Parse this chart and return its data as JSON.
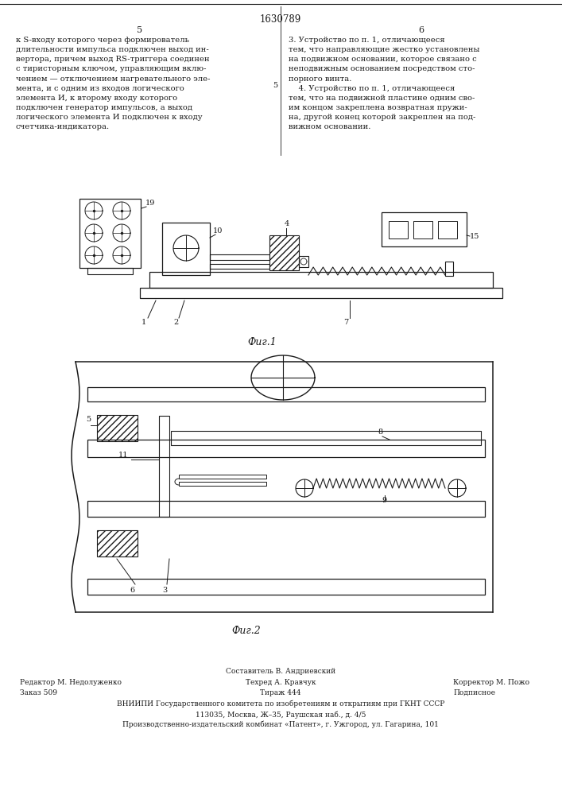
{
  "page_title": "1630789",
  "col_left": "5",
  "col_right": "6",
  "text_left": "к S-входу которого через формирователь\nдлительности импульса подключен выход ин-\nвертора, причем выход RS-триггера соединен\nс тиристорным ключом, управляющим вклю-\nчением — отключением нагревательного эле-\nмента, и с одним из входов логического\nэлемента И, к второму входу которого\nподключен генератор импульсов, а выход\nлогического элемента И подключен к входу\nсчетчика-индикатора.",
  "text_right": "3. Устройство по п. 1, отличающееся\nтем, что направляющие жестко установлены\nна подвижном основании, которое связано с\nнеподвижным основанием посредством сто-\nпорного винта.\n    4. Устройство по п. 1, отличающееся\nтем, что на подвижной пластине одним сво-\nим концом закреплена возвратная пружи-\nна, другой конец которой закреплен на под-\nвижном основании.",
  "fig1_label": "Фиг.1",
  "fig2_label": "Фиг.2",
  "footer_line1": "Составитель В. Андриевский",
  "footer_line2_left": "Редактор М. Недолуженко",
  "footer_line2_mid": "Техред А. Кравчук",
  "footer_line2_right": "Корректор М. Пожо",
  "footer_line3_left": "Заказ 509",
  "footer_line3_mid": "Тираж 444",
  "footer_line3_right": "Подписное",
  "footer_line4": "ВНИИПИ Государственного комитета по изобретениям и открытиям при ГКНТ СССР",
  "footer_line5": "113035, Москва, Ж–35, Раушская наб., д. 4/5",
  "footer_line6": "Производственно-издательский комбинат «Патент», г. Ужгород, ул. Гагарина, 101",
  "bg_color": "#ffffff",
  "line_color": "#1a1a1a"
}
